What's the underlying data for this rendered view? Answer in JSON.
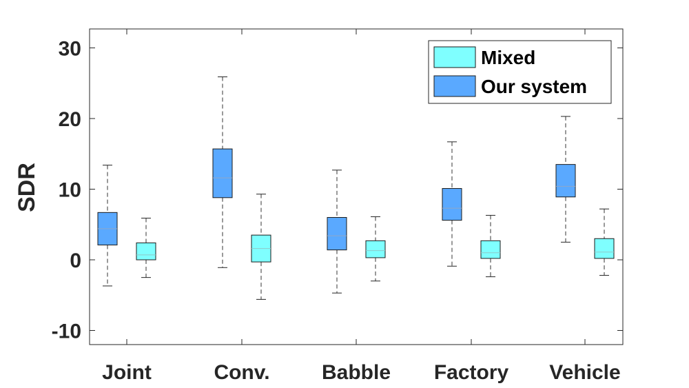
{
  "chart_data": {
    "type": "boxplot",
    "ylabel": "SDR",
    "ylim": [
      -12,
      33
    ],
    "yticks": [
      -10,
      0,
      10,
      20,
      30
    ],
    "categories": [
      "Joint",
      "Conv.",
      "Babble",
      "Factory",
      "Vehicle"
    ],
    "grid": false,
    "legend_position": "top-right",
    "series": [
      {
        "name": "Our system",
        "color": "#5AA9FF",
        "median_color": "#8FA8C8",
        "boxes": [
          {
            "category": "Joint",
            "whisker_low": -3.7,
            "q1": 2.1,
            "median": 4.4,
            "q3": 6.7,
            "whisker_high": 13.4
          },
          {
            "category": "Conv.",
            "whisker_low": -1.1,
            "q1": 8.8,
            "median": 11.6,
            "q3": 15.7,
            "whisker_high": 25.9
          },
          {
            "category": "Babble",
            "whisker_low": -4.7,
            "q1": 1.4,
            "median": 3.4,
            "q3": 6.0,
            "whisker_high": 12.7
          },
          {
            "category": "Factory",
            "whisker_low": -0.9,
            "q1": 5.6,
            "median": 7.3,
            "q3": 10.1,
            "whisker_high": 16.7
          },
          {
            "category": "Vehicle",
            "whisker_low": 2.5,
            "q1": 8.9,
            "median": 10.4,
            "q3": 13.5,
            "whisker_high": 20.3
          }
        ]
      },
      {
        "name": "Mixed",
        "color": "#7FFFFF",
        "median_color": "#8FC8C8",
        "boxes": [
          {
            "category": "Joint",
            "whisker_low": -2.5,
            "q1": 0.0,
            "median": 0.7,
            "q3": 2.4,
            "whisker_high": 5.9
          },
          {
            "category": "Conv.",
            "whisker_low": -5.6,
            "q1": -0.3,
            "median": 1.6,
            "q3": 3.5,
            "whisker_high": 9.3
          },
          {
            "category": "Babble",
            "whisker_low": -3.0,
            "q1": 0.3,
            "median": 1.3,
            "q3": 2.7,
            "whisker_high": 6.1
          },
          {
            "category": "Factory",
            "whisker_low": -2.4,
            "q1": 0.2,
            "median": 1.0,
            "q3": 2.7,
            "whisker_high": 6.3
          },
          {
            "category": "Vehicle",
            "whisker_low": -2.2,
            "q1": 0.2,
            "median": 1.1,
            "q3": 3.0,
            "whisker_high": 7.2
          }
        ]
      }
    ],
    "legend_order": [
      "Mixed",
      "Our system"
    ]
  }
}
